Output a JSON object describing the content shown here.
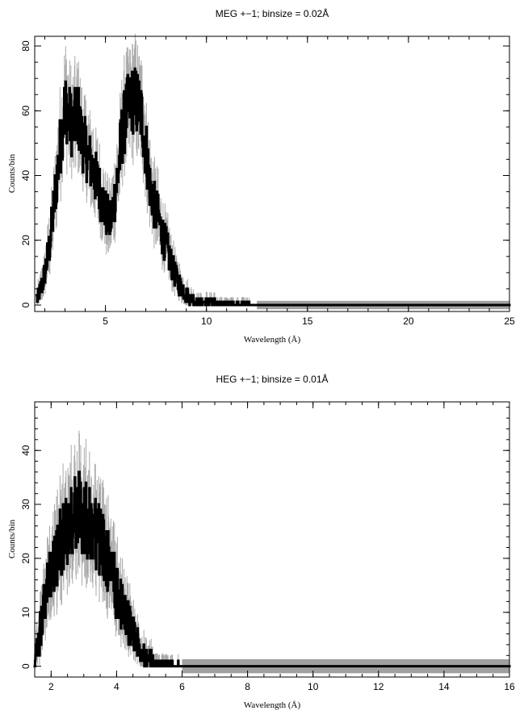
{
  "colors": {
    "background": "#ffffff",
    "axis": "#000000",
    "error_bar": "#a8a8a8",
    "spectrum": "#000000",
    "zero_band": "#a0a0a0"
  },
  "chart_data": [
    {
      "type": "line",
      "title": "MEG +−1; binsize = 0.02Å",
      "xlabel": "Wavelength (Å)",
      "ylabel": "Counts/bin",
      "xlim": [
        1.5,
        25
      ],
      "ylim": [
        -2,
        83
      ],
      "xticks": [
        5,
        10,
        15,
        20,
        25
      ],
      "yticks": [
        0,
        20,
        40,
        60,
        80
      ],
      "error_bars": true,
      "series": [
        {
          "x": [
            1.6,
            1.8,
            2.0,
            2.2,
            2.4,
            2.6,
            2.8,
            3.0,
            3.2,
            3.4,
            3.6,
            3.8,
            4.0,
            4.2,
            4.4,
            4.6,
            4.8,
            5.0,
            5.2,
            5.4,
            5.6,
            5.8,
            6.0,
            6.2,
            6.4,
            6.6,
            6.8,
            7.0,
            7.2,
            7.4,
            7.6,
            7.8,
            8.0,
            8.2,
            8.4,
            8.6,
            8.8,
            9.0,
            9.2,
            9.4,
            9.6,
            9.8,
            10.0,
            10.5,
            11.0,
            11.5,
            12.0,
            12.5,
            13.0,
            15.0,
            20.0,
            25.0
          ],
          "y": [
            2,
            5,
            10,
            17,
            28,
            40,
            52,
            62,
            58,
            55,
            60,
            52,
            48,
            45,
            41,
            38,
            33,
            29,
            25,
            31,
            40,
            52,
            59,
            62,
            64,
            62,
            58,
            48,
            37,
            31,
            27,
            22,
            18,
            14,
            10,
            7,
            5,
            3,
            2,
            1.5,
            1,
            1,
            1,
            0.5,
            0.5,
            0.3,
            0.2,
            0,
            0,
            0,
            0,
            0
          ]
        }
      ]
    },
    {
      "type": "line",
      "title": "HEG +−1; binsize = 0.01Å",
      "xlabel": "Wavelength (Å)",
      "ylabel": "Counts/bin",
      "xlim": [
        1.5,
        16
      ],
      "ylim": [
        -2,
        49
      ],
      "xticks": [
        2,
        4,
        6,
        8,
        10,
        12,
        14,
        16
      ],
      "yticks": [
        0,
        10,
        20,
        30,
        40
      ],
      "error_bars": true,
      "series": [
        {
          "x": [
            1.5,
            1.6,
            1.7,
            1.8,
            1.9,
            2.0,
            2.1,
            2.2,
            2.3,
            2.4,
            2.5,
            2.6,
            2.7,
            2.8,
            2.9,
            3.0,
            3.1,
            3.2,
            3.3,
            3.4,
            3.5,
            3.6,
            3.7,
            3.8,
            3.9,
            4.0,
            4.1,
            4.2,
            4.3,
            4.4,
            4.5,
            4.6,
            4.7,
            4.8,
            4.9,
            5.0,
            5.1,
            5.2,
            6.0,
            8.0,
            10.0,
            12.0,
            14.0,
            16.0
          ],
          "y": [
            1,
            4,
            8,
            12,
            15,
            17,
            19,
            21,
            23,
            24,
            26,
            27,
            28,
            29,
            28,
            27,
            27,
            26,
            25,
            25,
            23,
            22,
            20,
            18,
            16,
            14,
            12,
            11,
            9,
            8,
            6,
            5,
            4,
            3,
            2,
            1.5,
            1,
            0.5,
            0,
            0,
            0,
            0,
            0,
            0
          ]
        }
      ]
    }
  ]
}
